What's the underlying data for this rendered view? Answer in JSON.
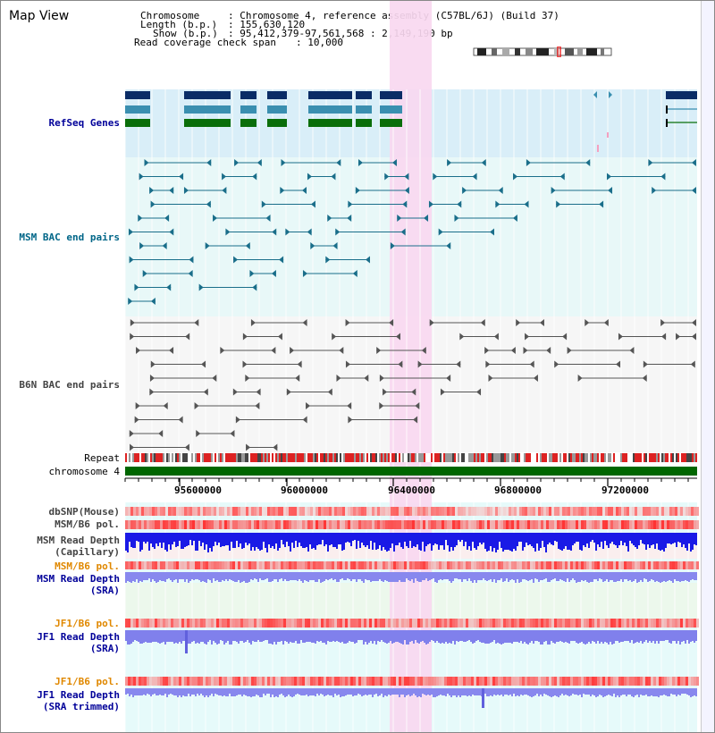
{
  "title": "Map View",
  "info": {
    "chromosome_label": "Chromosome",
    "chromosome_value": ": Chromosome 4, reference assembly (C57BL/6J) (Build 37)",
    "length_label": "Length (b.p.)",
    "length_value": ": 155,630,120",
    "show_label": "Show (b.p.)",
    "show_value": ": 95,412,379-97,561,568 : 2,149,190 bp",
    "coverage_label": "Read coverage check span",
    "coverage_value": ": 10,000"
  },
  "tracks": {
    "refseq": "RefSeq Genes",
    "msm_bac": "MSM BAC end pairs",
    "b6n_bac": "B6N BAC end pairs",
    "repeat": "Repeat",
    "chromosome": "chromosome 4",
    "dbsnp": "dbSNP(Mouse)",
    "msm_b6_pol_1": "MSM/B6 pol.",
    "msm_depth_cap_1": "MSM Read Depth",
    "msm_depth_cap_2": "(Capillary)",
    "msm_b6_pol_2": "MSM/B6 pol.",
    "msm_depth_sra_1": "MSM Read Depth",
    "msm_depth_sra_2": "(SRA)",
    "jf1_b6_pol_1": "JF1/B6 pol.",
    "jf1_depth_sra_1": "JF1 Read Depth",
    "jf1_depth_sra_2": "(SRA)",
    "jf1_b6_pol_2": "JF1/B6 pol.",
    "jf1_depth_trim_1": "JF1 Read Depth",
    "jf1_depth_trim_2": "(SRA trimmed)"
  },
  "ruler_ticks": [
    "95600000",
    "96000000",
    "96400000",
    "96800000",
    "97200000"
  ],
  "colors": {
    "refseq_navy": "#0a2c66",
    "refseq_teal": "#3a8fb0",
    "refseq_green": "#0a6e0a",
    "msm_bac": "#1a6e8a",
    "b6n_bac": "#555555",
    "label_navy": "#000099",
    "label_teal": "#006688",
    "label_orange": "#e08800",
    "depth_blue": "#1a1ae6",
    "depth_light": "#8888ee",
    "highlight": "#f8d8f0",
    "chrom_green": "#006600"
  }
}
